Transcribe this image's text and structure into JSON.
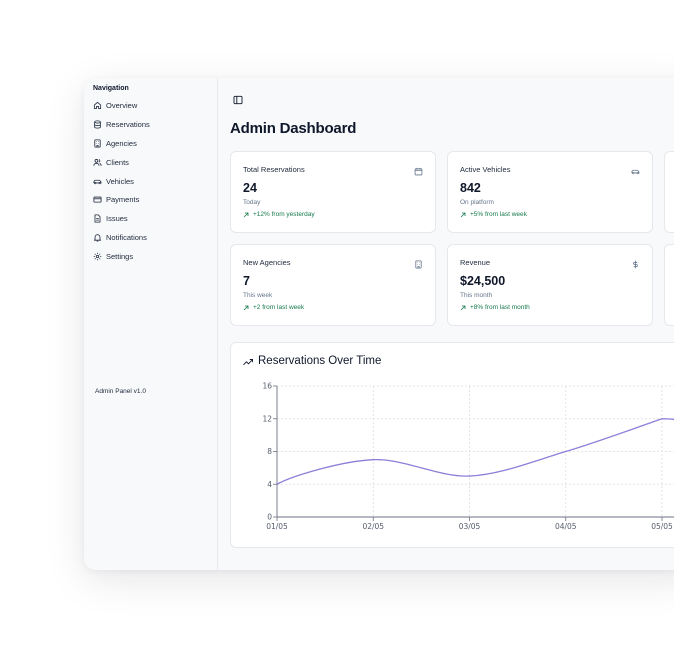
{
  "sidebar": {
    "heading": "Navigation",
    "items": [
      {
        "label": "Overview",
        "icon": "home-icon"
      },
      {
        "label": "Reservations",
        "icon": "database-icon"
      },
      {
        "label": "Agencies",
        "icon": "building-icon"
      },
      {
        "label": "Clients",
        "icon": "users-icon"
      },
      {
        "label": "Vehicles",
        "icon": "car-icon"
      },
      {
        "label": "Payments",
        "icon": "credit-card-icon"
      },
      {
        "label": "Issues",
        "icon": "file-icon"
      },
      {
        "label": "Notifications",
        "icon": "bell-icon"
      },
      {
        "label": "Settings",
        "icon": "gear-icon"
      }
    ],
    "footer": "Admin Panel v1.0"
  },
  "header": {
    "title": "Admin Dashboard",
    "toggle_icon": "sidebar-toggle-icon"
  },
  "cards": [
    {
      "title": "Total Reservations",
      "value": "24",
      "sub": "Today",
      "trend": "+12% from yesterday",
      "icon": "calendar-icon"
    },
    {
      "title": "Active Vehicles",
      "value": "842",
      "sub": "On platform",
      "trend": "+5% from last week",
      "icon": "car-icon"
    },
    {
      "title": "New Agencies",
      "value": "7",
      "sub": "This week",
      "trend": "+2 from last week",
      "icon": "building-icon"
    },
    {
      "title": "Revenue",
      "value": "$24,500",
      "sub": "This month",
      "trend": "+8% from last month",
      "icon": "dollar-icon"
    }
  ],
  "colors": {
    "trend_positive": "#16794c",
    "line": "#8b7fd8",
    "grid": "#d9dce2"
  },
  "chart_data": {
    "type": "line",
    "title": "Reservations Over Time",
    "categories": [
      "01/05",
      "02/05",
      "03/05",
      "04/05",
      "05/05"
    ],
    "series": [
      {
        "values": [
          4,
          7,
          5,
          8,
          12
        ]
      }
    ],
    "ylim": [
      0,
      16
    ],
    "yticks": [
      0,
      4,
      8,
      12,
      16
    ],
    "grid": true,
    "smooth": true
  }
}
